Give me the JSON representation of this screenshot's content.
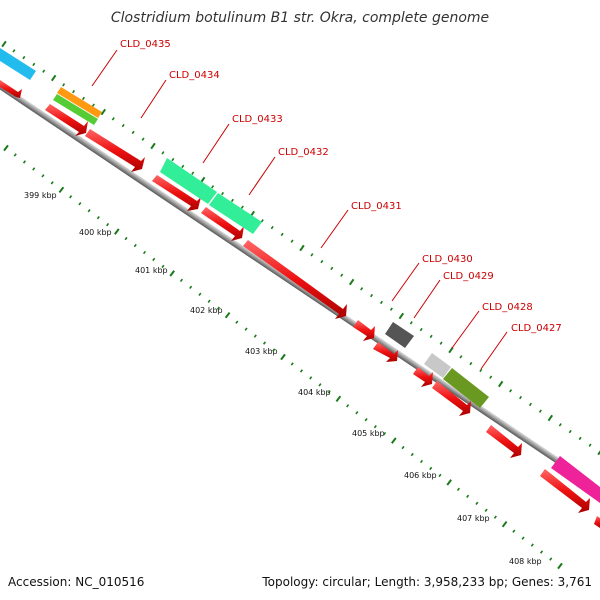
{
  "title": "Clostridium botulinum B1 str. Okra, complete genome",
  "accession": "Accession: NC_010516",
  "topology": "Topology: circular; Length: 3,958,233 bp; Genes: 3,761",
  "colors": {
    "label": "#cc0000",
    "backbone": "#8a8a8a",
    "tick": "#1a7a1a",
    "cds": "#ee1111"
  },
  "kbp_labels": [
    "399 kbp",
    "400 kbp",
    "401 kbp",
    "402 kbp",
    "403 kbp",
    "404 kbp",
    "405 kbp",
    "406 kbp",
    "407 kbp",
    "408 kbp"
  ],
  "gene_labels": [
    "CLD_0435",
    "CLD_0434",
    "CLD_0433",
    "CLD_0432",
    "CLD_0431",
    "CLD_0430",
    "CLD_0429",
    "CLD_0428",
    "CLD_0427"
  ],
  "feature_colors": {
    "cyan": "#22bbee",
    "orange": "#ff9911",
    "lightgreen": "#55cc33",
    "mint": "#33ee99",
    "darkgray": "#555555",
    "lightgray": "#c8c8c8",
    "olive": "#6a9922",
    "magenta": "#ee2299"
  }
}
